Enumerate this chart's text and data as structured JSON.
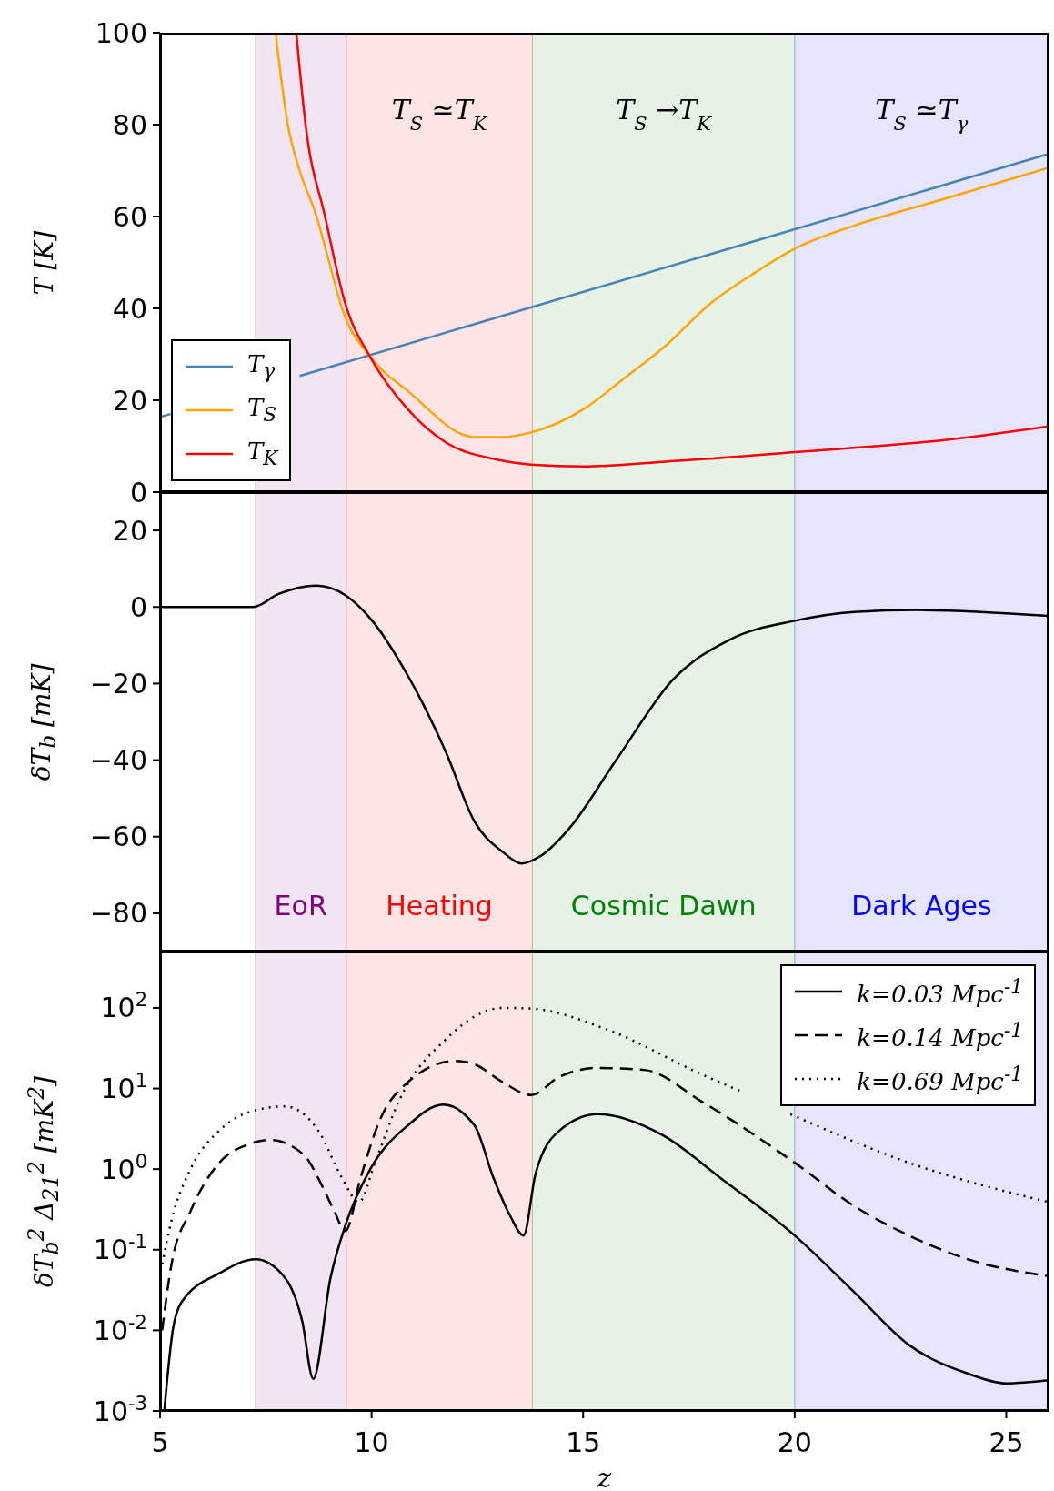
{
  "chart_data": [
    {
      "type": "line",
      "ylabel": "T  [K]",
      "xlim": [
        5,
        26
      ],
      "xticks": [
        5,
        10,
        15,
        20,
        25
      ],
      "ylim": [
        0,
        100
      ],
      "yticks": [
        0,
        20,
        40,
        60,
        80,
        100
      ],
      "tick_labels": "y",
      "legend": "lower left",
      "series": [
        {
          "name": "T$_{γ}$",
          "color": "#4682b4",
          "x": [
            5,
            5.25,
            5.5,
            8.3,
            26
          ],
          "values": [
            16.4,
            17.0,
            null,
            25.3,
            73.6
          ]
        },
        {
          "name": "T$_{S}$",
          "color": "#ffa500",
          "x": [
            7.73,
            8.02,
            8.3,
            8.7,
            9.0,
            9.3,
            9.97,
            10.86,
            12.43,
            13.1,
            13.77,
            15,
            16,
            16.9,
            18,
            19.1,
            20,
            21.4,
            23.6,
            26
          ],
          "values": [
            100,
            80,
            70,
            60,
            50,
            40,
            29.5,
            22,
            12,
            12,
            13,
            18,
            25,
            31.5,
            41,
            48,
            53,
            58,
            64,
            70.6
          ]
        },
        {
          "name": "T$_{K}$",
          "color": "#ff0000",
          "x": [
            8.22,
            8.44,
            8.9,
            9.38,
            9.97,
            10.86,
            11.76,
            12.9,
            13.77,
            15,
            16.9,
            20,
            23.6,
            26
          ],
          "values": [
            100,
            80,
            60,
            41,
            29.4,
            18,
            10.8,
            7.2,
            6,
            5.6,
            6.6,
            8.7,
            11.4,
            14.3
          ]
        }
      ],
      "bands": [
        {
          "axis": "x",
          "from": 7.25,
          "to": 9.4,
          "color": "#800080"
        },
        {
          "axis": "x",
          "from": 9.4,
          "to": 13.8,
          "label": "T$_{S}$ ≃T$_{K}$",
          "color": "#ff0000"
        },
        {
          "axis": "x",
          "from": 13.8,
          "to": 20,
          "label": "T$_{S}$ →T$_{K}$",
          "color": "#008000"
        },
        {
          "axis": "x",
          "from": 20,
          "to": 26,
          "label": "T$_{S}$ ≃T$_{γ}$",
          "color": "#0000ff"
        }
      ]
    },
    {
      "type": "line",
      "ylabel": "δT$_{b}$  [mK]",
      "xlim": [
        5,
        26
      ],
      "xticks": [
        5,
        10,
        15,
        20,
        25
      ],
      "ylim": [
        -90,
        30
      ],
      "yticks": [
        {
          "value": -80,
          "label": "−80"
        },
        {
          "value": -60,
          "label": "−60"
        },
        {
          "value": -40,
          "label": "−40"
        },
        {
          "value": -20,
          "label": "−20"
        },
        0,
        20
      ],
      "tick_labels": "y",
      "color": "#000000",
      "x": [
        5,
        7.2,
        7.8,
        8.7,
        9.38,
        9.97,
        10.86,
        11.76,
        12.43,
        13.1,
        13.55,
        14.0,
        14.66,
        15.78,
        17.12,
        18.47,
        20,
        21.4,
        22.9,
        26
      ],
      "values": [
        0,
        0,
        3.4,
        5.6,
        3.1,
        -3,
        -18,
        -38,
        -56,
        -64,
        -67,
        -65,
        -58,
        -40,
        -19,
        -8.5,
        -3.6,
        -1.3,
        -0.8,
        -2.3
      ],
      "bands": [
        {
          "axis": "x",
          "from": 7.25,
          "to": 9.4,
          "label": "EoR",
          "color": "#800080"
        },
        {
          "axis": "x",
          "from": 9.4,
          "to": 13.8,
          "label": "Heating",
          "color": "#ff0000"
        },
        {
          "axis": "x",
          "from": 13.8,
          "to": 20,
          "label": "Cosmic Dawn",
          "color": "#008000"
        },
        {
          "axis": "x",
          "from": 20,
          "to": 26,
          "label": "Dark Ages",
          "color": "#0000ff"
        }
      ]
    },
    {
      "type": "line",
      "xlabel": "z",
      "ylabel": "δT$_{b}$$^{2}$ Δ$_{21}$$^{2}$  [mK$^{2}$]",
      "xlim": [
        5,
        26
      ],
      "xticks": [
        5,
        10,
        15,
        20,
        25
      ],
      "ylim": [
        0.001,
        500
      ],
      "log": "y",
      "legend": "top right",
      "yticks": [
        {
          "value": 0.001,
          "label": "10$^{-3}$"
        },
        {
          "value": 0.01,
          "label": "10$^{-2}$"
        },
        {
          "value": 0.1,
          "label": "10$^{-1}$"
        },
        {
          "value": 1,
          "label": "10$^{0}$"
        },
        {
          "value": 10,
          "label": "10$^{1}$"
        },
        {
          "value": 100,
          "label": "10$^{2}$"
        }
      ],
      "series": [
        {
          "name": "k=0.03 Mpc$^{-1}$",
          "color": "#000000",
          "line_style": "solid",
          "x": [
            5.1,
            5.3,
            5.5,
            6.4,
            7.26,
            7.95,
            8.36,
            8.62,
            9.03,
            9.38,
            9.97,
            10.86,
            11.69,
            12.43,
            12.88,
            13.28,
            13.59,
            13.88,
            14.44,
            15.34,
            16.9,
            18.24,
            20,
            21.4,
            22.7,
            24.1,
            25,
            26
          ],
          "values": [
            0.001,
            0.01,
            0.022,
            0.051,
            0.076,
            0.045,
            0.013,
            0.0025,
            0.045,
            0.2,
            1.0,
            3.5,
            6.3,
            3.5,
            0.78,
            0.26,
            0.15,
            0.9,
            3.0,
            4.8,
            2.6,
            0.78,
            0.15,
            0.03,
            0.0066,
            0.0029,
            0.0022,
            0.0024
          ]
        },
        {
          "name": "k=0.14 Mpc$^{-1}$",
          "color": "#000000",
          "line_style": "dashed",
          "x": [
            5.05,
            5.27,
            5.72,
            6.4,
            7.06,
            7.6,
            8.4,
            8.85,
            9.12,
            9.38,
            9.74,
            10.19,
            10.86,
            11.98,
            12.43,
            13.1,
            13.77,
            14.44,
            15.34,
            16.45,
            17.8,
            20,
            21.4,
            22.7,
            24.1,
            26
          ],
          "values": [
            0.01,
            0.066,
            0.3,
            1.2,
            2.0,
            2.3,
            1.5,
            0.59,
            0.3,
            0.17,
            0.78,
            4.0,
            12,
            22,
            20,
            12,
            8.3,
            14,
            18,
            17,
            6.9,
            1.2,
            0.35,
            0.15,
            0.076,
            0.047
          ]
        },
        {
          "name": "k=0.69 Mpc$^{-1}$",
          "color": "#000000",
          "line_style": "dotted",
          "x": [
            5.05,
            5.27,
            5.72,
            6.4,
            7.06,
            7.95,
            8.74,
            9.3,
            9.7,
            10.08,
            10.64,
            11.76,
            13.1,
            13.77,
            15.56,
            17.8,
            18.8,
            19.3,
            19.9,
            22.7,
            26
          ],
          "values": [
            0.066,
            0.23,
            1.0,
            3.0,
            5.0,
            6.0,
            3.0,
            0.78,
            0.39,
            1.2,
            6.9,
            41,
            100,
            98,
            54,
            15,
            8.9,
            null,
            4.8,
            1.2,
            0.39
          ]
        }
      ],
      "bands": [
        {
          "axis": "x",
          "from": 7.25,
          "to": 9.4,
          "color": "#800080"
        },
        {
          "axis": "x",
          "from": 9.4,
          "to": 13.8,
          "color": "#ff0000"
        },
        {
          "axis": "x",
          "from": 13.8,
          "to": 20,
          "color": "#008000"
        },
        {
          "axis": "x",
          "from": 20,
          "to": 26,
          "color": "#0000ff"
        }
      ]
    }
  ]
}
